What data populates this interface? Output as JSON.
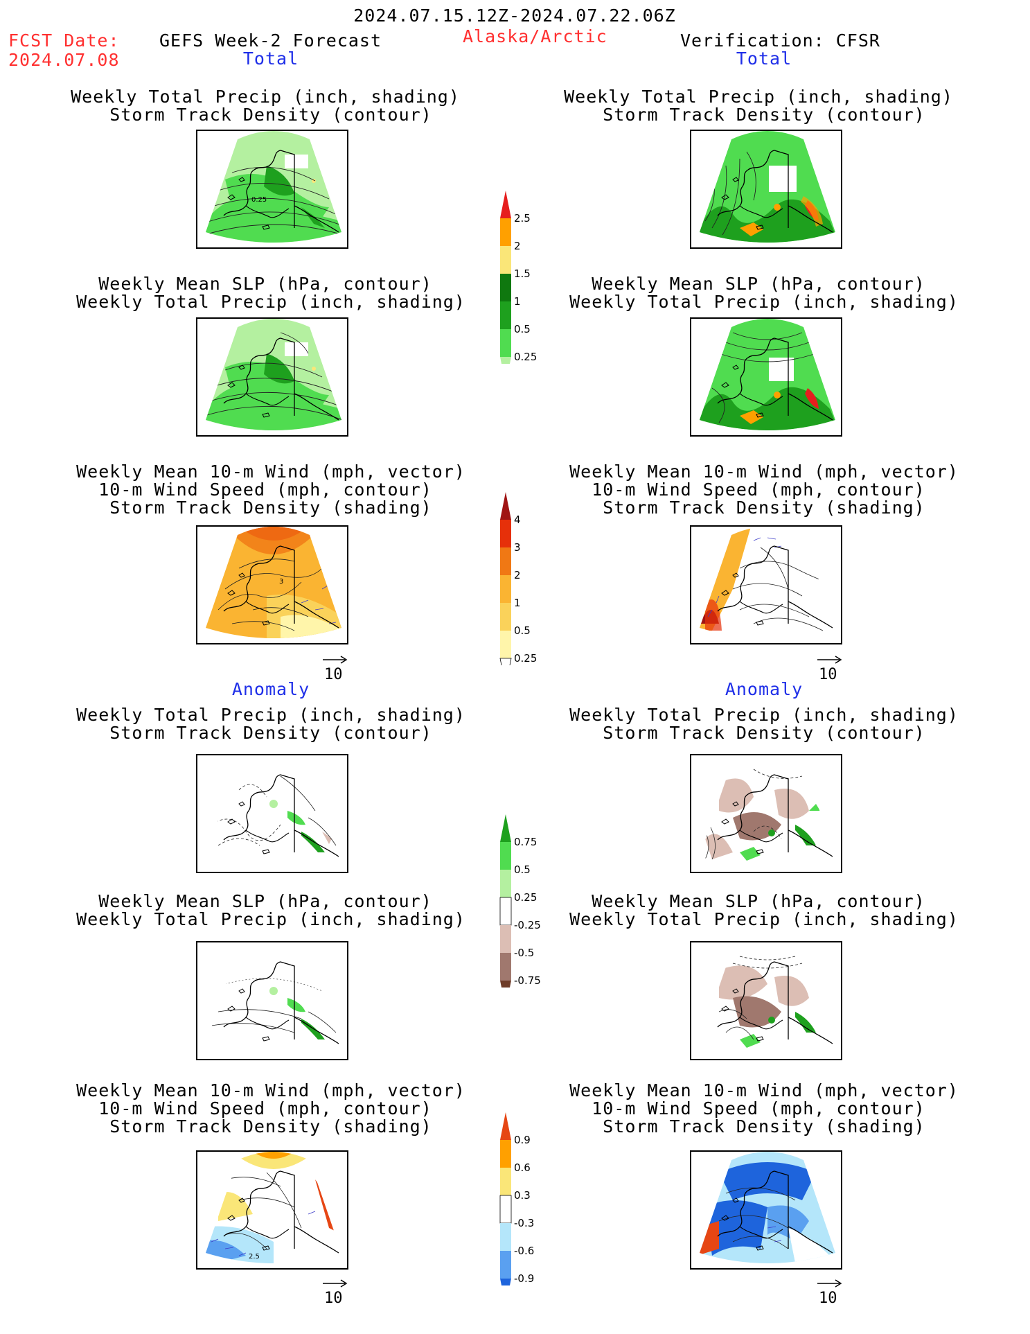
{
  "header": {
    "date_range": "2024.07.15.12Z-2024.07.22.06Z",
    "fcst_label": "FCST Date:",
    "fcst_date": "2024.07.08",
    "model_title": "GEFS Week-2 Forecast",
    "region": "Alaska/Arctic",
    "verification": "Verification: CFSR"
  },
  "sections": {
    "total": "Total",
    "anomaly": "Anomaly"
  },
  "titles": {
    "precip_track": [
      "Weekly Total Precip (inch, shading)",
      "Storm Track Density (contour)"
    ],
    "slp_precip": [
      "Weekly Mean SLP (hPa, contour)",
      "Weekly Total Precip (inch, shading)"
    ],
    "wind_track": [
      "Weekly Mean 10-m Wind (mph, vector)",
      "10-m Wind Speed (mph, contour)",
      "Storm Track Density (shading)"
    ]
  },
  "panel_labels": {
    "contour_025": "0.25",
    "contour_3": "3",
    "contour_25": "2.5"
  },
  "vector_ref": "10",
  "colors": {
    "title_red": "#ff3030",
    "section_blue": "#1f2fe8"
  },
  "chart_data": [
    {
      "type": "heatmap",
      "name": "precip_total_colorbar",
      "levels": [
        0.25,
        0.5,
        1,
        1.5,
        2,
        2.5
      ],
      "tick_labels": [
        "0.25",
        "0.5",
        "1",
        "1.5",
        "2",
        "2.5"
      ],
      "colors": [
        "#b4f0a0",
        "#50dc50",
        "#1ea01e",
        "#0f780f",
        "#fae678",
        "#ffa000",
        "#e61e1e"
      ]
    },
    {
      "type": "heatmap",
      "name": "storm_track_total_colorbar",
      "levels": [
        0.25,
        0.5,
        1,
        2,
        3,
        4
      ],
      "tick_labels": [
        "0.25",
        "0.5",
        "1",
        "2",
        "3",
        "4"
      ],
      "colors": [
        "#ffffff",
        "#fff5aa",
        "#fad25a",
        "#fab432",
        "#f07814",
        "#e6300a",
        "#a01414"
      ]
    },
    {
      "type": "heatmap",
      "name": "precip_anomaly_colorbar",
      "levels": [
        -0.75,
        -0.5,
        -0.25,
        0.25,
        0.5,
        0.75
      ],
      "tick_labels": [
        "-0.75",
        "-0.5",
        "-0.25",
        "0.25",
        "0.5",
        "0.75"
      ],
      "colors": [
        "#6e3c28",
        "#a0786e",
        "#dcbeb4",
        "#ffffff",
        "#b4f0a0",
        "#50dc50",
        "#1ea01e"
      ]
    },
    {
      "type": "heatmap",
      "name": "storm_track_anomaly_colorbar",
      "levels": [
        -0.9,
        -0.6,
        -0.3,
        0.3,
        0.6,
        0.9
      ],
      "tick_labels": [
        "-0.9",
        "-0.6",
        "-0.3",
        "0.3",
        "0.6",
        "0.9"
      ],
      "colors": [
        "#1e64dc",
        "#5aa0f0",
        "#b4e6fa",
        "#ffffff",
        "#fae678",
        "#ffa000",
        "#e64614"
      ]
    }
  ]
}
